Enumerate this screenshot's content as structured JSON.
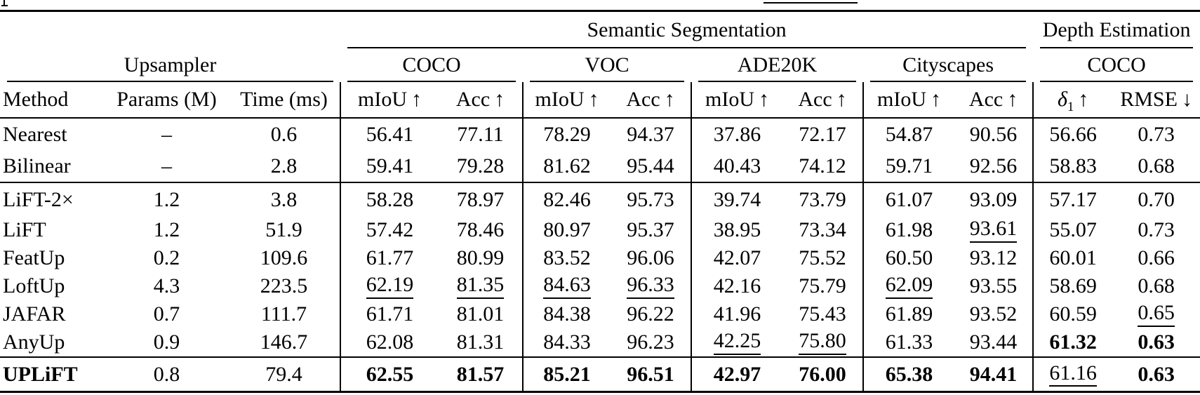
{
  "table": {
    "task_groups": [
      {
        "label": "Semantic Segmentation"
      },
      {
        "label": "Depth Estimation"
      }
    ],
    "upsampler_group_label": "Upsampler",
    "dataset_headers": [
      "COCO",
      "VOC",
      "ADE20K",
      "Cityscapes",
      "COCO"
    ],
    "column_headers": [
      {
        "text": "Method",
        "align": "left"
      },
      {
        "text": "Params (M)"
      },
      {
        "text": "Time (ms)"
      },
      {
        "text": "mIoU",
        "arrow": "↑",
        "bar_left": true
      },
      {
        "text": "Acc",
        "arrow": "↑"
      },
      {
        "text": "mIoU",
        "arrow": "↑",
        "bar_left": true
      },
      {
        "text": "Acc",
        "arrow": "↑"
      },
      {
        "text": "mIoU",
        "arrow": "↑",
        "bar_left": true
      },
      {
        "text": "Acc",
        "arrow": "↑"
      },
      {
        "text": "mIoU",
        "arrow": "↑",
        "bar_left": true
      },
      {
        "text": "Acc",
        "arrow": "↑"
      },
      {
        "text": "δ",
        "sub": "1",
        "italic": true,
        "arrow": "↑",
        "bar_left": true
      },
      {
        "text": "RMSE",
        "arrow": "↓"
      }
    ],
    "rows": [
      {
        "method": "Nearest",
        "cells": [
          "–",
          "0.6",
          "56.41",
          "77.11",
          "78.29",
          "94.37",
          "37.86",
          "72.17",
          "54.87",
          "90.56",
          "56.66",
          "0.73"
        ],
        "bold": [],
        "underline": [],
        "tall": true
      },
      {
        "method": "Bilinear",
        "cells": [
          "–",
          "2.8",
          "59.41",
          "79.28",
          "81.62",
          "95.44",
          "40.43",
          "74.12",
          "59.71",
          "92.56",
          "58.83",
          "0.68"
        ],
        "bold": [],
        "underline": [],
        "tall": true
      },
      {
        "method": "LiFT-2×",
        "cells": [
          "1.2",
          "3.8",
          "58.28",
          "78.97",
          "82.46",
          "95.73",
          "39.74",
          "73.79",
          "61.07",
          "93.09",
          "57.17",
          "0.70"
        ],
        "bold": [],
        "underline": [],
        "rule_above": true
      },
      {
        "method": "LiFT",
        "cells": [
          "1.2",
          "51.9",
          "57.42",
          "78.46",
          "80.97",
          "95.37",
          "38.95",
          "73.34",
          "61.98",
          "93.61",
          "55.07",
          "0.73"
        ],
        "bold": [],
        "underline": [
          9
        ]
      },
      {
        "method": "FeatUp",
        "cells": [
          "0.2",
          "109.6",
          "61.77",
          "80.99",
          "83.52",
          "96.06",
          "42.07",
          "75.52",
          "60.50",
          "93.12",
          "60.01",
          "0.66"
        ],
        "bold": [],
        "underline": []
      },
      {
        "method": "LoftUp",
        "cells": [
          "4.3",
          "223.5",
          "62.19",
          "81.35",
          "84.63",
          "96.33",
          "42.16",
          "75.79",
          "62.09",
          "93.55",
          "58.69",
          "0.68"
        ],
        "bold": [],
        "underline": [
          2,
          3,
          4,
          5,
          8
        ]
      },
      {
        "method": "JAFAR",
        "cells": [
          "0.7",
          "111.7",
          "61.71",
          "81.01",
          "84.38",
          "96.22",
          "41.96",
          "75.43",
          "61.89",
          "93.52",
          "60.59",
          "0.65"
        ],
        "bold": [],
        "underline": [
          11
        ]
      },
      {
        "method": "AnyUp",
        "cells": [
          "0.9",
          "146.7",
          "62.08",
          "81.31",
          "84.33",
          "96.23",
          "42.25",
          "75.80",
          "61.33",
          "93.44",
          "61.32",
          "0.63"
        ],
        "bold": [
          10,
          11
        ],
        "underline": [
          6,
          7
        ]
      },
      {
        "method": "UPLiFT",
        "method_bold": true,
        "cells": [
          "0.8",
          "79.4",
          "62.55",
          "81.57",
          "85.21",
          "96.51",
          "42.97",
          "76.00",
          "65.38",
          "94.41",
          "61.16",
          "0.63"
        ],
        "bold": [
          2,
          3,
          4,
          5,
          6,
          7,
          8,
          9,
          11
        ],
        "underline": [
          10
        ],
        "rule_above": true
      }
    ]
  }
}
